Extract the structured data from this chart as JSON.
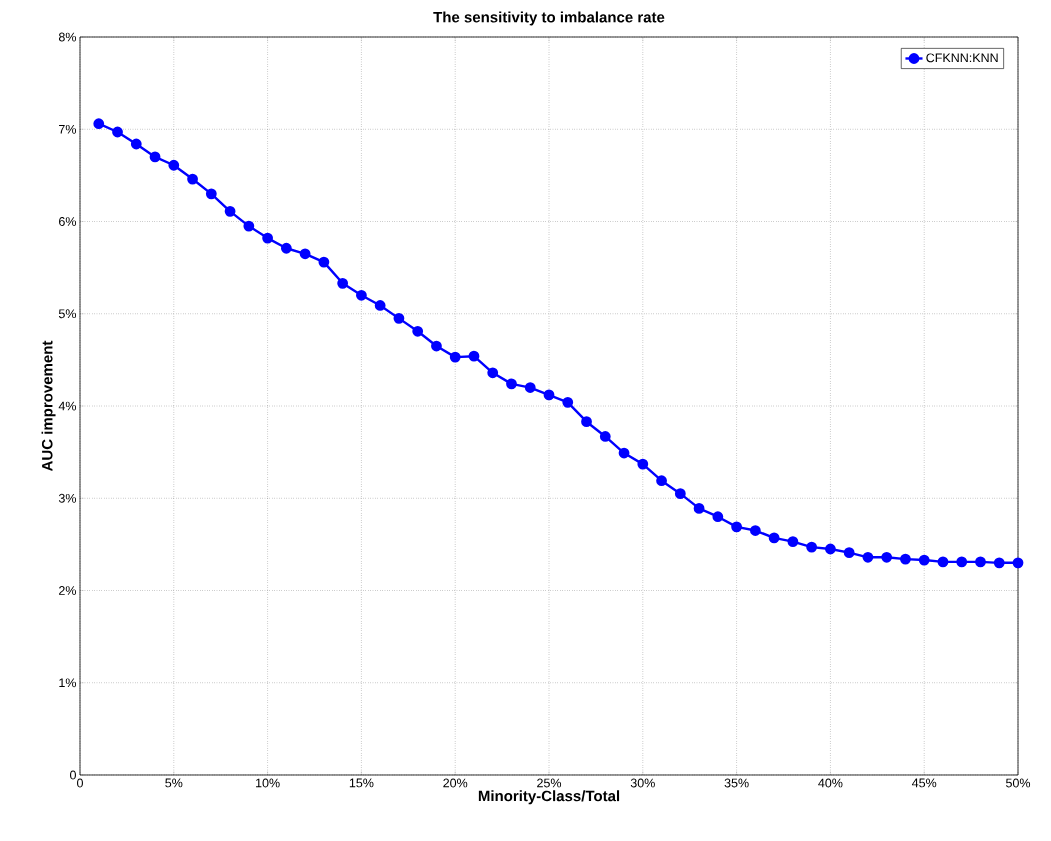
{
  "chart_data": {
    "type": "line",
    "title": "The sensitivity to imbalance rate",
    "xlabel": "Minority-Class/Total",
    "ylabel": "AUC improvement",
    "x": [
      1,
      2,
      3,
      4,
      5,
      6,
      7,
      8,
      9,
      10,
      11,
      12,
      13,
      14,
      15,
      16,
      17,
      18,
      19,
      20,
      21,
      22,
      23,
      24,
      25,
      26,
      27,
      28,
      29,
      30,
      31,
      32,
      33,
      34,
      35,
      36,
      37,
      38,
      39,
      40,
      41,
      42,
      43,
      44,
      45,
      46,
      47,
      48,
      49,
      50
    ],
    "series": [
      {
        "name": "CFKNN:KNN",
        "color": "#0000ff",
        "values": [
          7.06,
          6.97,
          6.84,
          6.7,
          6.61,
          6.46,
          6.3,
          6.11,
          5.95,
          5.82,
          5.71,
          5.65,
          5.56,
          5.33,
          5.2,
          5.09,
          4.95,
          4.81,
          4.65,
          4.53,
          4.54,
          4.36,
          4.24,
          4.2,
          4.12,
          4.04,
          3.83,
          3.67,
          3.49,
          3.37,
          3.19,
          3.05,
          2.89,
          2.8,
          2.69,
          2.65,
          2.57,
          2.53,
          2.47,
          2.45,
          2.41,
          2.36,
          2.36,
          2.34,
          2.33,
          2.31,
          2.31,
          2.31,
          2.3,
          2.3
        ]
      }
    ],
    "xlim": [
      0,
      50
    ],
    "xticks": [
      0,
      {
        "value": 5,
        "label": "5%"
      },
      {
        "value": 10,
        "label": "10%"
      },
      {
        "value": 15,
        "label": "15%"
      },
      {
        "value": 20,
        "label": "20%"
      },
      {
        "value": 25,
        "label": "25%"
      },
      {
        "value": 30,
        "label": "30%"
      },
      {
        "value": 35,
        "label": "35%"
      },
      {
        "value": 40,
        "label": "40%"
      },
      {
        "value": 45,
        "label": "45%"
      },
      {
        "value": 50,
        "label": "50%"
      }
    ],
    "ylim": [
      0,
      8
    ],
    "yticks": [
      0,
      {
        "value": 1,
        "label": "1%"
      },
      {
        "value": 2,
        "label": "2%"
      },
      {
        "value": 3,
        "label": "3%"
      },
      {
        "value": 4,
        "label": "4%"
      },
      {
        "value": 5,
        "label": "5%"
      },
      {
        "value": 6,
        "label": "6%"
      },
      {
        "value": 7,
        "label": "7%"
      },
      {
        "value": 8,
        "label": "8%"
      }
    ],
    "grid": true,
    "legend": "top right",
    "marker": "circle",
    "line_style": "solid"
  }
}
